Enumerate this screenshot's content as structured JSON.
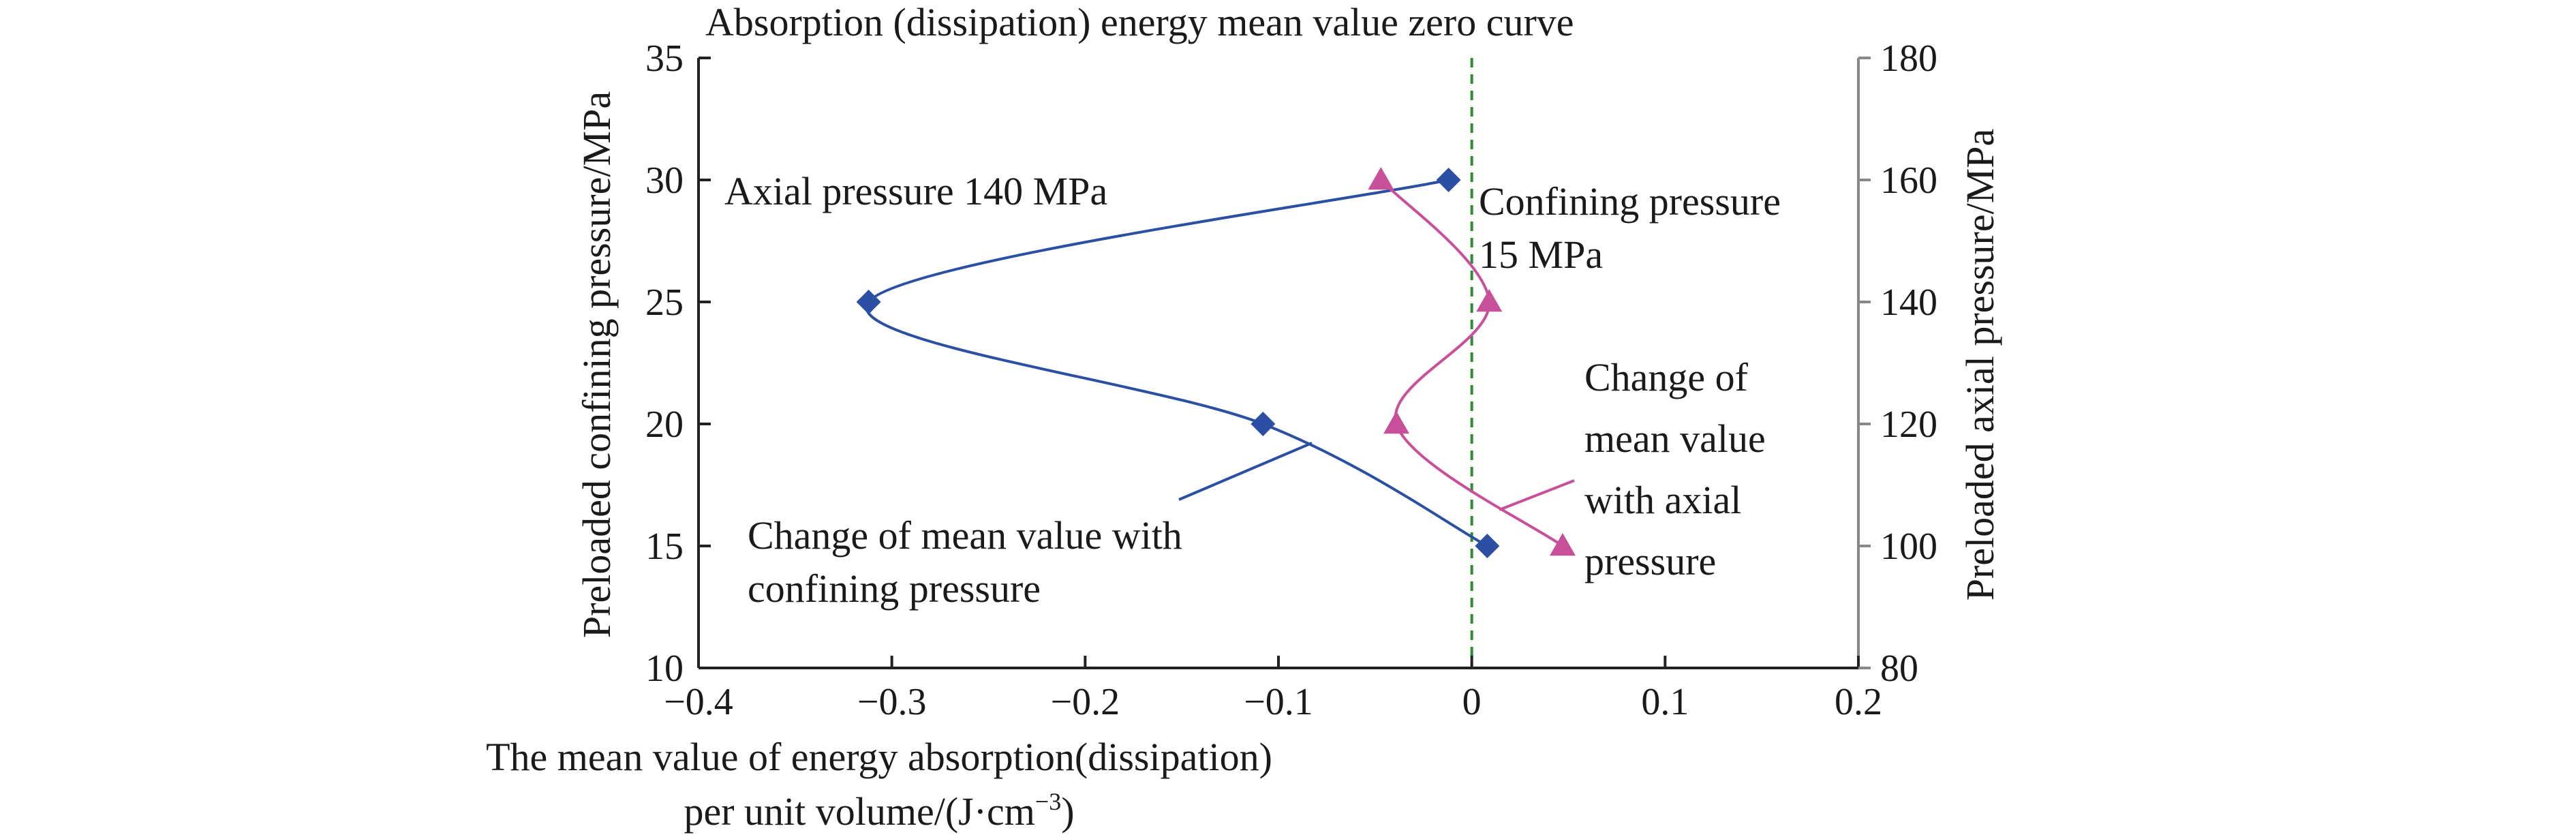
{
  "chart_data": {
    "type": "line",
    "xlim": [
      -0.4,
      0.2
    ],
    "ylim_left": [
      10,
      35
    ],
    "ylim_right": [
      80,
      180
    ],
    "x_ticks": [
      -0.4,
      -0.3,
      -0.2,
      -0.1,
      0,
      0.1,
      0.2
    ],
    "x_tick_labels": [
      "−0.4",
      "−0.3",
      "−0.2",
      "−0.1",
      "0",
      "0.1",
      "0.2"
    ],
    "y_left_ticks": [
      10,
      15,
      20,
      25,
      30,
      35
    ],
    "y_left_tick_labels": [
      "10",
      "15",
      "20",
      "25",
      "30",
      "35"
    ],
    "y_right_ticks": [
      80,
      100,
      120,
      140,
      160,
      180
    ],
    "y_right_tick_labels": [
      "80",
      "100",
      "120",
      "140",
      "160",
      "180"
    ],
    "xlabel_line1": "The mean value of energy absorption(dissipation)",
    "xlabel_line2": "per unit volume/(J·cm",
    "xlabel_sup": "−3",
    "xlabel_close": ")",
    "ylabel_left": "Preloaded confining pressure/MPa",
    "ylabel_right": "Preloaded axial pressure/MPa",
    "grid": false,
    "series": [
      {
        "axis": "left",
        "color": "#2b4fa3",
        "marker": "diamond",
        "points": [
          {
            "x": 0.008,
            "y": 15
          },
          {
            "x": -0.108,
            "y": 20
          },
          {
            "x": -0.312,
            "y": 25
          },
          {
            "x": -0.012,
            "y": 30
          }
        ]
      },
      {
        "axis": "right",
        "color": "#c8509a",
        "marker": "triangle",
        "points": [
          {
            "x": 0.047,
            "y": 100
          },
          {
            "x": -0.039,
            "y": 120
          },
          {
            "x": 0.009,
            "y": 140
          },
          {
            "x": -0.047,
            "y": 160
          }
        ]
      }
    ],
    "zero_line": {
      "x": 0,
      "color": "#2e8b3a"
    },
    "annotations": {
      "zero_curve": {
        "text": "Absorption (dissipation) energy mean value zero curve",
        "color": "#2e8b3a"
      },
      "axial_pressure": {
        "text": "Axial pressure 140 MPa",
        "color": "#2b4fa3"
      },
      "confining_pressure_1": {
        "text": "Confining pressure",
        "color": "#c8509a"
      },
      "confining_pressure_2": {
        "text": "15 MPa",
        "color": "#c8509a"
      },
      "blue_change_1": {
        "text": "Change of mean value with",
        "color": "#2b4fa3"
      },
      "blue_change_2": {
        "text": "confining pressure",
        "color": "#2b4fa3"
      },
      "pink_change_1": {
        "text": "Change of",
        "color": "#c8509a"
      },
      "pink_change_2": {
        "text": "mean value",
        "color": "#c8509a"
      },
      "pink_change_3": {
        "text": "with  axial",
        "color": "#c8509a"
      },
      "pink_change_4": {
        "text": "pressure",
        "color": "#c8509a"
      }
    }
  }
}
